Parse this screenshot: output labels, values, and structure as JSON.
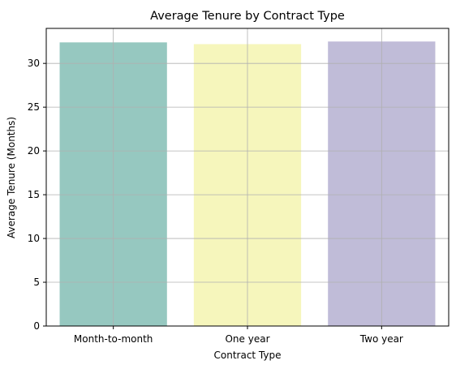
{
  "chart_data": {
    "type": "bar",
    "title": "Average Tenure by Contract Type",
    "xlabel": "Contract Type",
    "ylabel": "Average Tenure (Months)",
    "categories": [
      "Month-to-month",
      "One year",
      "Two year"
    ],
    "values": [
      32.4,
      32.2,
      32.5
    ],
    "colors": [
      "#96c8c0",
      "#f6f6bc",
      "#c0bcd8"
    ],
    "ylim": [
      0,
      34
    ],
    "yticks": [
      0,
      5,
      10,
      15,
      20,
      25,
      30
    ],
    "grid": true
  }
}
